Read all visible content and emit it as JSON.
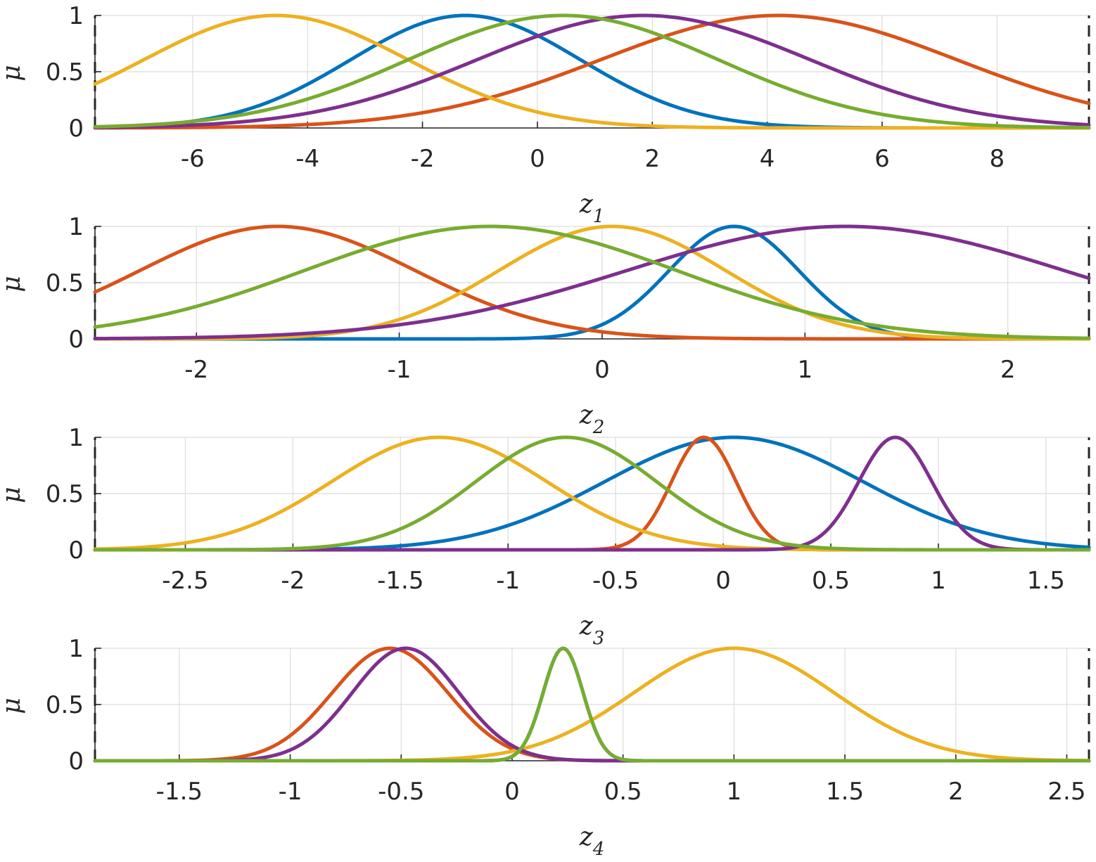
{
  "chart_data": [
    {
      "type": "line",
      "xlabel_main": "z",
      "xlabel_sub": "1",
      "ylabel": "μ",
      "xlim": [
        -7.7,
        9.6
      ],
      "ylim": [
        0,
        1
      ],
      "xticks": [
        -6,
        -4,
        -2,
        0,
        2,
        4,
        6,
        8
      ],
      "xtick_labels": [
        "-6",
        "-4",
        "-2",
        "0",
        "2",
        "4",
        "6",
        "8"
      ],
      "yticks": [
        0,
        0.5,
        1
      ],
      "ytick_labels": [
        "0",
        "0.5",
        "1"
      ],
      "grid": true,
      "dashed_edges": [
        "left",
        "right"
      ],
      "series": [
        {
          "color": "#0072BD",
          "center": -1.25,
          "sigma": 2.0
        },
        {
          "color": "#D95319",
          "center": 4.2,
          "sigma": 3.1
        },
        {
          "color": "#EDB120",
          "center": -4.55,
          "sigma": 2.3
        },
        {
          "color": "#7E2F8E",
          "center": 1.85,
          "sigma": 2.9
        },
        {
          "color": "#77AC30",
          "center": 0.45,
          "sigma": 2.7
        }
      ]
    },
    {
      "type": "line",
      "xlabel_main": "z",
      "xlabel_sub": "2",
      "ylabel": "μ",
      "xlim": [
        -2.5,
        2.4
      ],
      "ylim": [
        0,
        1
      ],
      "xticks": [
        -2,
        -1,
        0,
        1,
        2
      ],
      "xtick_labels": [
        "-2",
        "-1",
        "0",
        "1",
        "2"
      ],
      "yticks": [
        0,
        0.5,
        1
      ],
      "ytick_labels": [
        "0",
        "0.5",
        "1"
      ],
      "grid": true,
      "dashed_edges": [
        "left",
        "right"
      ],
      "series": [
        {
          "color": "#0072BD",
          "center": 0.65,
          "sigma": 0.32
        },
        {
          "color": "#D95319",
          "center": -1.6,
          "sigma": 0.68
        },
        {
          "color": "#EDB120",
          "center": 0.05,
          "sigma": 0.56
        },
        {
          "color": "#7E2F8E",
          "center": 1.2,
          "sigma": 1.08
        },
        {
          "color": "#77AC30",
          "center": -0.55,
          "sigma": 0.92
        }
      ]
    },
    {
      "type": "line",
      "xlabel_main": "z",
      "xlabel_sub": "3",
      "ylabel": "μ",
      "xlim": [
        -2.92,
        1.7
      ],
      "ylim": [
        0,
        1
      ],
      "xticks": [
        -2.5,
        -2,
        -1.5,
        -1,
        -0.5,
        0,
        0.5,
        1,
        1.5
      ],
      "xtick_labels": [
        "-2.5",
        "-2",
        "-1.5",
        "-1",
        "-0.5",
        "0",
        "0.5",
        "1",
        "1.5"
      ],
      "yticks": [
        0,
        0.5,
        1
      ],
      "ytick_labels": [
        "0",
        "0.5",
        "1"
      ],
      "grid": true,
      "dashed_edges": [
        "left",
        "right"
      ],
      "series": [
        {
          "color": "#0072BD",
          "center": 0.05,
          "sigma": 0.6
        },
        {
          "color": "#D95319",
          "center": -0.09,
          "sigma": 0.15
        },
        {
          "color": "#EDB120",
          "center": -1.32,
          "sigma": 0.5
        },
        {
          "color": "#7E2F8E",
          "center": 0.8,
          "sigma": 0.17
        },
        {
          "color": "#77AC30",
          "center": -0.73,
          "sigma": 0.42
        }
      ]
    },
    {
      "type": "line",
      "xlabel_main": "z",
      "xlabel_sub": "4",
      "ylabel": "μ",
      "xlim": [
        -1.88,
        2.6
      ],
      "ylim": [
        0,
        1
      ],
      "xticks": [
        -1.5,
        -1,
        -0.5,
        0,
        0.5,
        1,
        1.5,
        2,
        2.5
      ],
      "xtick_labels": [
        "-1.5",
        "-1",
        "-0.5",
        "0",
        "0.5",
        "1",
        "1.5",
        "2",
        "2.5"
      ],
      "yticks": [
        0,
        0.5,
        1
      ],
      "ytick_labels": [
        "0",
        "0.5",
        "1"
      ],
      "grid": true,
      "dashed_edges": [
        "left",
        "right"
      ],
      "series": [
        {
          "color": "#0072BD",
          "center": 0.23,
          "sigma": 0.09
        },
        {
          "color": "#D95319",
          "center": -0.55,
          "sigma": 0.26
        },
        {
          "color": "#EDB120",
          "center": 1.0,
          "sigma": 0.45
        },
        {
          "color": "#7E2F8E",
          "center": -0.48,
          "sigma": 0.24
        },
        {
          "color": "#77AC30",
          "center": 0.23,
          "sigma": 0.09
        }
      ]
    }
  ]
}
